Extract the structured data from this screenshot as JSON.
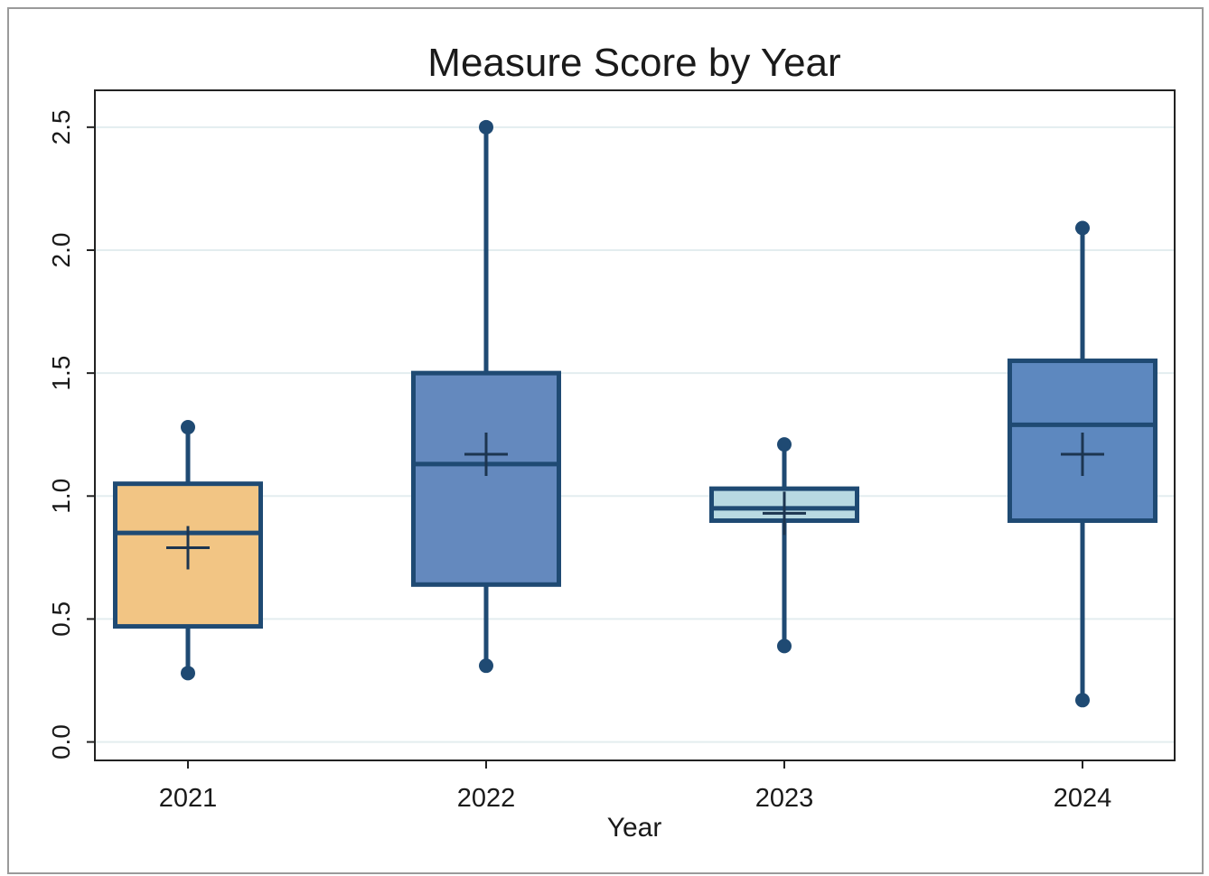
{
  "chart_data": {
    "type": "box",
    "title": "Measure Score by Year",
    "x_label": "Year",
    "categories": [
      "2021",
      "2022",
      "2023",
      "2024"
    ],
    "min": [
      0.28,
      0.31,
      0.39,
      0.17
    ],
    "q1": [
      0.47,
      0.64,
      0.9,
      0.9
    ],
    "median": [
      0.85,
      1.13,
      0.95,
      1.29
    ],
    "q3": [
      1.05,
      1.5,
      1.03,
      1.55
    ],
    "max": [
      1.28,
      2.5,
      1.21,
      2.09
    ],
    "mean": [
      0.79,
      1.17,
      0.93,
      1.17
    ],
    "colors": [
      "#f2c584",
      "#6489be",
      "#b8d9e2",
      "#5d88bf"
    ],
    "line_color": "#1f4a73",
    "ylim": [
      -0.075,
      2.65
    ],
    "yticks": [
      {
        "value": 0,
        "label": "0.0"
      },
      {
        "value": 0.5,
        "label": "0.5"
      },
      {
        "value": 1,
        "label": "1.0"
      },
      {
        "value": 1.5,
        "label": "1.5"
      },
      {
        "value": 2,
        "label": "2.0"
      },
      {
        "value": 2.5,
        "label": "2.5"
      }
    ],
    "grid": true
  }
}
